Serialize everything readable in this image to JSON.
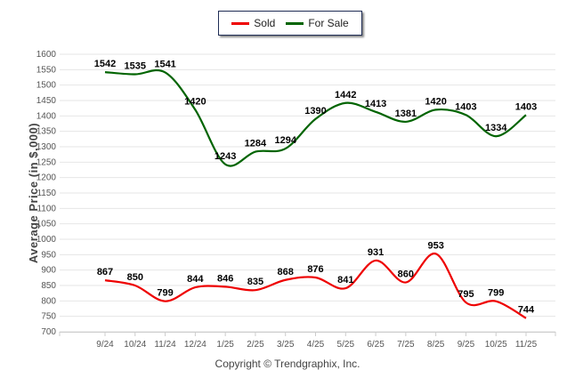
{
  "chart_data": {
    "type": "line",
    "title": "",
    "xlabel": "",
    "ylabel": "Average Price (in $,000)",
    "ylim": [
      700,
      1600
    ],
    "yticks": [
      700,
      750,
      800,
      850,
      900,
      950,
      1000,
      1050,
      1100,
      1150,
      1200,
      1250,
      1300,
      1350,
      1400,
      1450,
      1500,
      1550,
      1600
    ],
    "grid": true,
    "legend_position": "top-center",
    "categories": [
      "9/24",
      "10/24",
      "11/24",
      "12/24",
      "1/25",
      "2/25",
      "3/25",
      "4/25",
      "5/25",
      "6/25",
      "7/25",
      "8/25",
      "9/25",
      "10/25",
      "11/25"
    ],
    "series": [
      {
        "name": "Sold",
        "color": "#ee0000",
        "values": [
          867,
          850,
          799,
          844,
          846,
          835,
          868,
          876,
          841,
          931,
          860,
          953,
          795,
          799,
          744
        ]
      },
      {
        "name": "For Sale",
        "color": "#006400",
        "values": [
          1542,
          1535,
          1541,
          1420,
          1243,
          1284,
          1294,
          1390,
          1442,
          1413,
          1381,
          1420,
          1403,
          1334,
          1403
        ]
      }
    ]
  },
  "footer": {
    "copyright": "Copyright © Trendgraphix, Inc."
  }
}
